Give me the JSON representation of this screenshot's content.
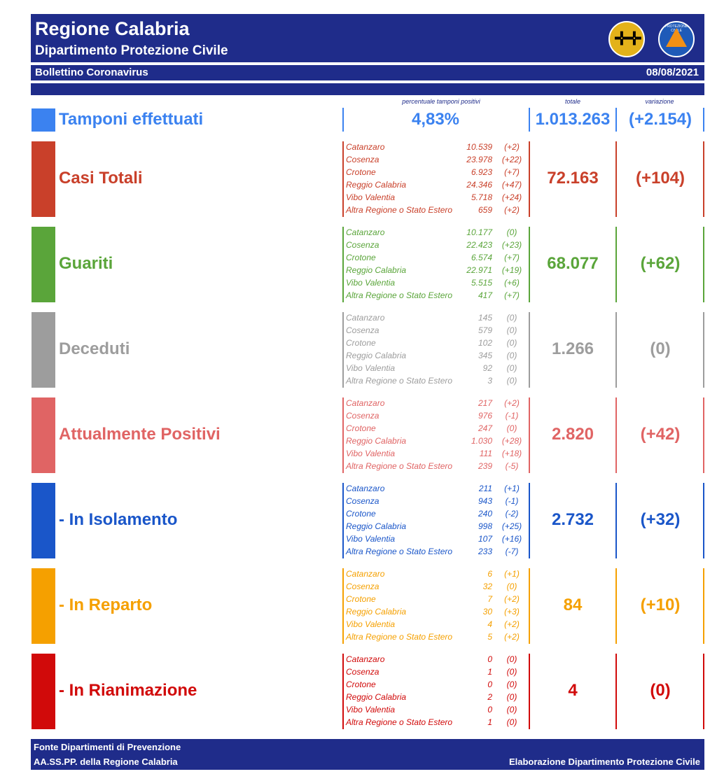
{
  "header": {
    "title": "Regione Calabria",
    "subtitle": "Dipartimento Protezione Civile",
    "bulletin": "Bollettino Coronavirus",
    "date": "08/08/2021",
    "logo_right_text": "PROTEZIONE CIVILE"
  },
  "columns": {
    "pct_label": "percentuale tamponi positivi",
    "total_label": "totale",
    "change_label": "variazione"
  },
  "tamponi": {
    "label": "Tamponi effettuati",
    "pct": "4,83%",
    "total": "1.013.263",
    "change": "(+2.154)",
    "color": "#3b82f0"
  },
  "sections": [
    {
      "label": "Casi Totali",
      "color": "#c9402a",
      "total": "72.163",
      "change": "(+104)",
      "provinces": [
        {
          "name": "Catanzaro",
          "value": "10.539",
          "change": "(+2)"
        },
        {
          "name": "Cosenza",
          "value": "23.978",
          "change": "(+22)"
        },
        {
          "name": "Crotone",
          "value": "6.923",
          "change": "(+7)"
        },
        {
          "name": "Reggio Calabria",
          "value": "24.346",
          "change": "(+47)"
        },
        {
          "name": "Vibo Valentia",
          "value": "5.718",
          "change": "(+24)"
        },
        {
          "name": "Altra Regione o Stato Estero",
          "value": "659",
          "change": "(+2)"
        }
      ]
    },
    {
      "label": "Guariti",
      "color": "#5aa53a",
      "total": "68.077",
      "change": "(+62)",
      "provinces": [
        {
          "name": "Catanzaro",
          "value": "10.177",
          "change": "(0)"
        },
        {
          "name": "Cosenza",
          "value": "22.423",
          "change": "(+23)"
        },
        {
          "name": "Crotone",
          "value": "6.574",
          "change": "(+7)"
        },
        {
          "name": "Reggio Calabria",
          "value": "22.971",
          "change": "(+19)"
        },
        {
          "name": "Vibo Valentia",
          "value": "5.515",
          "change": "(+6)"
        },
        {
          "name": "Altra Regione o Stato Estero",
          "value": "417",
          "change": "(+7)"
        }
      ]
    },
    {
      "label": "Deceduti",
      "color": "#9d9d9d",
      "total": "1.266",
      "change": "(0)",
      "provinces": [
        {
          "name": "Catanzaro",
          "value": "145",
          "change": "(0)"
        },
        {
          "name": "Cosenza",
          "value": "579",
          "change": "(0)"
        },
        {
          "name": "Crotone",
          "value": "102",
          "change": "(0)"
        },
        {
          "name": "Reggio Calabria",
          "value": "345",
          "change": "(0)"
        },
        {
          "name": "Vibo Valentia",
          "value": "92",
          "change": "(0)"
        },
        {
          "name": "Altra Regione o Stato Estero",
          "value": "3",
          "change": "(0)"
        }
      ]
    },
    {
      "label": "Attualmente Positivi",
      "color": "#e06464",
      "total": "2.820",
      "change": "(+42)",
      "provinces": [
        {
          "name": "Catanzaro",
          "value": "217",
          "change": "(+2)"
        },
        {
          "name": "Cosenza",
          "value": "976",
          "change": "(-1)"
        },
        {
          "name": "Crotone",
          "value": "247",
          "change": "(0)"
        },
        {
          "name": "Reggio Calabria",
          "value": "1.030",
          "change": "(+28)"
        },
        {
          "name": "Vibo Valentia",
          "value": "111",
          "change": "(+18)"
        },
        {
          "name": "Altra Regione o Stato Estero",
          "value": "239",
          "change": "(-5)"
        }
      ]
    },
    {
      "label": " - In Isolamento",
      "color": "#1a56c9",
      "total": "2.732",
      "change": "(+32)",
      "provinces": [
        {
          "name": "Catanzaro",
          "value": "211",
          "change": "(+1)"
        },
        {
          "name": "Cosenza",
          "value": "943",
          "change": "(-1)"
        },
        {
          "name": "Crotone",
          "value": "240",
          "change": "(-2)"
        },
        {
          "name": "Reggio Calabria",
          "value": "998",
          "change": "(+25)"
        },
        {
          "name": "Vibo Valentia",
          "value": "107",
          "change": "(+16)"
        },
        {
          "name": "Altra Regione o Stato Estero",
          "value": "233",
          "change": "(-7)"
        }
      ]
    },
    {
      "label": " - In Reparto",
      "color": "#f5a000",
      "total": "84",
      "change": "(+10)",
      "provinces": [
        {
          "name": "Catanzaro",
          "value": "6",
          "change": "(+1)"
        },
        {
          "name": "Cosenza",
          "value": "32",
          "change": "(0)"
        },
        {
          "name": "Crotone",
          "value": "7",
          "change": "(+2)"
        },
        {
          "name": "Reggio Calabria",
          "value": "30",
          "change": "(+3)"
        },
        {
          "name": "Vibo Valentia",
          "value": "4",
          "change": "(+2)"
        },
        {
          "name": "Altra Regione o Stato Estero",
          "value": "5",
          "change": "(+2)"
        }
      ]
    },
    {
      "label": " - In Rianimazione",
      "color": "#d10a0a",
      "total": "4",
      "change": "(0)",
      "provinces": [
        {
          "name": "Catanzaro",
          "value": "0",
          "change": "(0)"
        },
        {
          "name": "Cosenza",
          "value": "1",
          "change": "(0)"
        },
        {
          "name": "Crotone",
          "value": "0",
          "change": "(0)"
        },
        {
          "name": "Reggio Calabria",
          "value": "2",
          "change": "(0)"
        },
        {
          "name": "Vibo Valentia",
          "value": "0",
          "change": "(0)"
        },
        {
          "name": "Altra Regione o Stato Estero",
          "value": "1",
          "change": "(0)"
        }
      ]
    }
  ],
  "footer": {
    "line1": "Fonte Dipartimenti di Prevenzione",
    "line2": "AA.SS.PP.  della Regione Calabria",
    "right": "Elaborazione Dipartimento Protezione Civile"
  }
}
